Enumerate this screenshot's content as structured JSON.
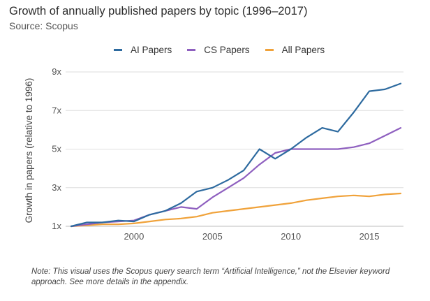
{
  "header": {
    "title": "Growth of annually published papers by topic (1996–2017)",
    "subtitle": "Source: Scopus"
  },
  "legend": [
    {
      "label": "AI Papers",
      "color": "#2d6a9f"
    },
    {
      "label": "CS Papers",
      "color": "#8e5fbf"
    },
    {
      "label": "All Papers",
      "color": "#f0a23a"
    }
  ],
  "note": "Note: This visual uses the Scopus query search term “Artificial Intelligence,” not the Elsevier keyword approach. See more details in the appendix.",
  "chart_data": {
    "type": "line",
    "title": "Growth of annually published papers by topic (1996–2017)",
    "subtitle": "Source: Scopus",
    "xlabel": "",
    "ylabel": "Growth in papers (relative to 1996)",
    "xlim": [
      1996,
      2017
    ],
    "ylim": [
      1,
      9
    ],
    "yticks": [
      1,
      3,
      5,
      7,
      9
    ],
    "ytick_labels": [
      "1x",
      "3x",
      "5x",
      "7x",
      "9x"
    ],
    "xticks": [
      2000,
      2005,
      2010,
      2015
    ],
    "xtick_labels": [
      "2000",
      "2005",
      "2010",
      "2015"
    ],
    "grid": "horizontal",
    "legend_position": "top",
    "x": [
      1996,
      1997,
      1998,
      1999,
      2000,
      2001,
      2002,
      2003,
      2004,
      2005,
      2006,
      2007,
      2008,
      2009,
      2010,
      2011,
      2012,
      2013,
      2014,
      2015,
      2016,
      2017
    ],
    "series": [
      {
        "name": "AI Papers",
        "color": "#2d6a9f",
        "values": [
          1.0,
          1.2,
          1.2,
          1.3,
          1.25,
          1.6,
          1.8,
          2.2,
          2.8,
          3.0,
          3.4,
          3.9,
          5.0,
          4.5,
          5.0,
          5.6,
          6.1,
          5.9,
          6.9,
          8.0,
          8.1,
          8.4
        ]
      },
      {
        "name": "CS Papers",
        "color": "#8e5fbf",
        "values": [
          1.0,
          1.1,
          1.2,
          1.25,
          1.3,
          1.6,
          1.8,
          2.0,
          1.9,
          2.5,
          3.0,
          3.5,
          4.2,
          4.8,
          5.0,
          5.0,
          5.0,
          5.0,
          5.1,
          5.3,
          5.7,
          6.1
        ]
      },
      {
        "name": "All Papers",
        "color": "#f0a23a",
        "values": [
          1.0,
          1.05,
          1.1,
          1.1,
          1.15,
          1.25,
          1.35,
          1.4,
          1.5,
          1.7,
          1.8,
          1.9,
          2.0,
          2.1,
          2.2,
          2.35,
          2.45,
          2.55,
          2.6,
          2.55,
          2.65,
          2.7
        ]
      }
    ]
  }
}
